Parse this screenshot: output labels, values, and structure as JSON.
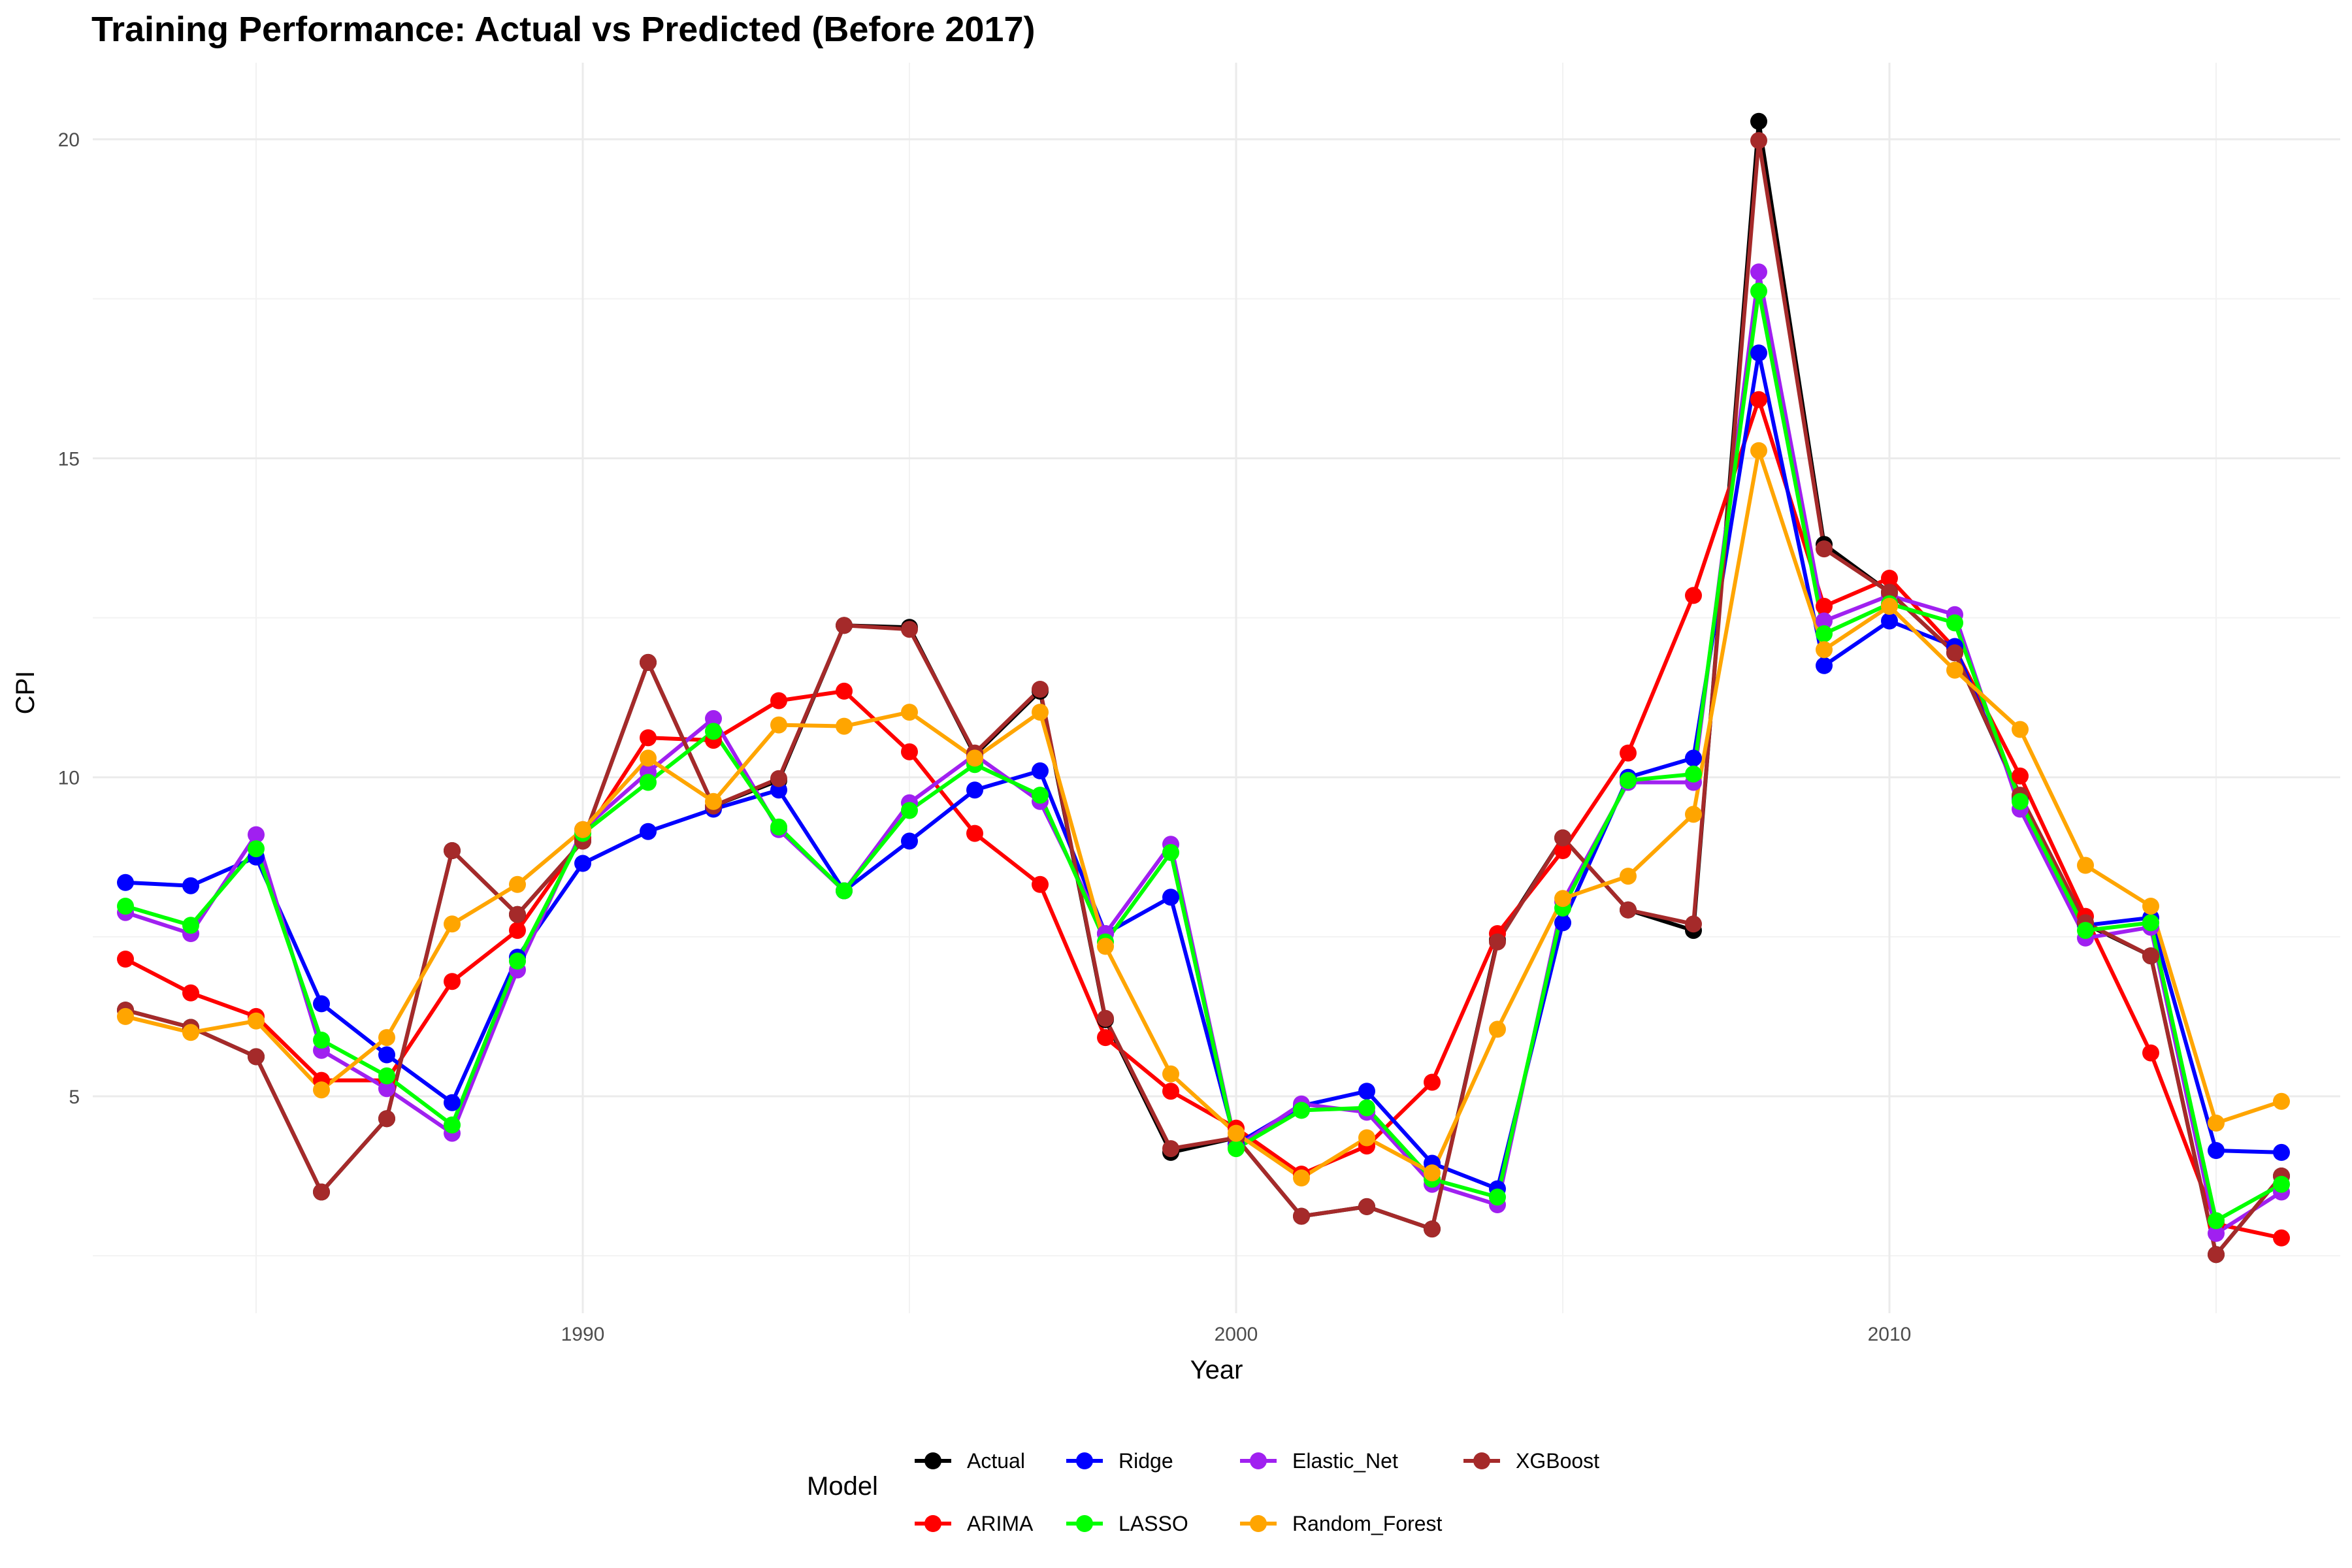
{
  "chart_data": {
    "type": "line",
    "title": "Training Performance: Actual vs Predicted (Before 2017)",
    "xlabel": "Year",
    "ylabel": "CPI",
    "xlim": [
      1982.5,
      2016.9
    ],
    "ylim": [
      1.6,
      21.2
    ],
    "x_ticks": [
      1990,
      2000,
      2010
    ],
    "y_ticks": [
      5,
      10,
      15,
      20
    ],
    "grid": true,
    "legend_title": "Model",
    "legend_position": "bottom",
    "x": [
      1983,
      1984,
      1985,
      1986,
      1987,
      1988,
      1989,
      1990,
      1991,
      1992,
      1993,
      1994,
      1995,
      1996,
      1997,
      1998,
      1999,
      2000,
      2001,
      2002,
      2003,
      2004,
      2005,
      2006,
      2007,
      2008,
      2009,
      2010,
      2011,
      2012,
      2013,
      2014,
      2015,
      2016
    ],
    "series": [
      {
        "name": "Actual",
        "color": "#000000",
        "values": [
          6.35,
          6.08,
          5.62,
          3.5,
          4.65,
          8.85,
          7.85,
          9.0,
          11.8,
          9.55,
          9.95,
          12.38,
          12.35,
          10.35,
          11.35,
          6.2,
          4.12,
          4.35,
          3.12,
          3.27,
          2.92,
          7.45,
          9.05,
          7.92,
          7.6,
          20.28,
          13.65,
          12.9,
          11.95,
          9.7,
          7.7,
          7.2,
          2.52,
          3.75
        ]
      },
      {
        "name": "ARIMA",
        "color": "#ff0000",
        "values": [
          7.15,
          6.62,
          6.25,
          5.25,
          5.25,
          6.8,
          7.6,
          9.05,
          10.62,
          10.58,
          11.2,
          11.35,
          10.4,
          9.12,
          8.32,
          5.92,
          5.08,
          4.5,
          3.78,
          4.22,
          5.22,
          7.55,
          8.85,
          10.38,
          12.85,
          15.92,
          12.68,
          13.12,
          12.02,
          10.02,
          7.82,
          5.68,
          3.0,
          2.78
        ]
      },
      {
        "name": "Ridge",
        "color": "#0000ff",
        "values": [
          8.35,
          8.3,
          8.75,
          6.45,
          5.65,
          4.9,
          7.18,
          8.65,
          9.15,
          9.5,
          9.8,
          8.22,
          9.0,
          9.8,
          10.1,
          7.55,
          8.12,
          4.25,
          4.85,
          5.08,
          3.95,
          3.55,
          7.72,
          10.0,
          10.3,
          16.65,
          11.75,
          12.45,
          12.05,
          9.65,
          7.68,
          7.8,
          4.15,
          4.12
        ]
      },
      {
        "name": "Elastic_Net",
        "color": "#a020f0",
        "values": [
          7.88,
          7.55,
          9.1,
          5.72,
          5.12,
          4.42,
          6.98,
          9.18,
          10.08,
          10.92,
          9.18,
          8.22,
          9.6,
          10.35,
          9.62,
          7.55,
          8.95,
          4.2,
          4.88,
          4.75,
          3.62,
          3.3,
          8.05,
          9.92,
          9.92,
          17.92,
          12.45,
          12.85,
          12.55,
          9.5,
          7.48,
          7.65,
          2.85,
          3.5
        ]
      },
      {
        "name": "XGBoost",
        "color": "#a52a2a",
        "values": [
          6.35,
          6.08,
          5.62,
          3.5,
          4.65,
          8.85,
          7.85,
          9.0,
          11.8,
          9.55,
          9.98,
          12.38,
          12.32,
          10.38,
          11.38,
          6.22,
          4.18,
          4.35,
          3.12,
          3.27,
          2.92,
          7.42,
          9.05,
          7.92,
          7.7,
          19.98,
          13.58,
          12.9,
          11.95,
          9.72,
          7.72,
          7.2,
          2.52,
          3.75
        ]
      },
      {
        "name": "LASSO",
        "color": "#00ff00",
        "values": [
          7.98,
          7.68,
          8.88,
          5.88,
          5.32,
          4.55,
          7.12,
          9.12,
          9.92,
          10.72,
          9.22,
          8.22,
          9.48,
          10.2,
          9.72,
          7.42,
          8.82,
          4.18,
          4.78,
          4.82,
          3.7,
          3.42,
          7.95,
          9.95,
          10.05,
          17.62,
          12.25,
          12.72,
          12.42,
          9.62,
          7.6,
          7.72,
          3.05,
          3.62
        ]
      },
      {
        "name": "Random_Forest",
        "color": "#ffa500",
        "values": [
          6.25,
          6.0,
          6.18,
          5.1,
          5.92,
          7.7,
          8.32,
          9.18,
          10.3,
          9.62,
          10.82,
          10.8,
          11.02,
          10.3,
          11.02,
          7.35,
          5.35,
          4.42,
          3.72,
          4.35,
          3.8,
          6.05,
          8.1,
          8.45,
          9.42,
          15.12,
          12.0,
          12.68,
          11.68,
          10.75,
          8.62,
          7.98,
          4.58,
          4.92
        ]
      }
    ]
  }
}
